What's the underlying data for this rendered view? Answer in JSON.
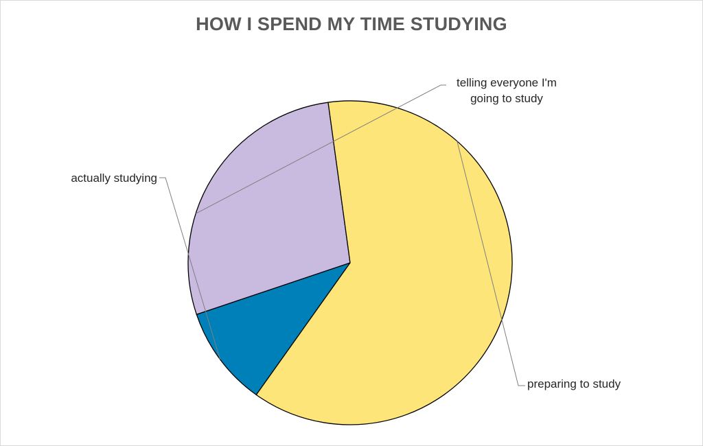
{
  "chart_data": {
    "type": "pie",
    "title": "HOW I SPEND MY TIME STUDYING",
    "categories": [
      "actually studying",
      "telling everyone I'm going to study",
      "preparing to study"
    ],
    "values": [
      10,
      28,
      62
    ],
    "unit": "%",
    "colors": [
      "#0080b8",
      "#c9badf",
      "#fde57a"
    ],
    "slice_border_color": "#000000",
    "label_lines": [
      [
        "actually studying"
      ],
      [
        "telling everyone I'm",
        "going to study"
      ],
      [
        "preparing to study"
      ]
    ],
    "legend": "none",
    "data_labels": "category name with leader lines"
  }
}
